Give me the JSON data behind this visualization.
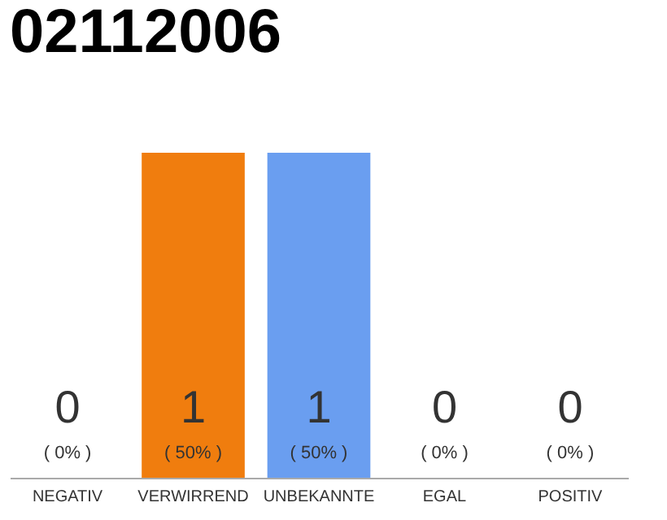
{
  "chart_data": {
    "type": "bar",
    "title": "02112006",
    "categories": [
      "NEGATIV",
      "VERWIRREND",
      "UNBEKANNTE",
      "EGAL",
      "POSITIV"
    ],
    "values": [
      0,
      1,
      1,
      0,
      0
    ],
    "colors": [
      "#efefef",
      "#f07d0e",
      "#6a9ef0",
      "#efefef",
      "#efefef"
    ],
    "ylim": [
      0,
      1
    ],
    "data_labels": true,
    "annotations": [
      {
        "text": "( 0% )",
        "x": "NEGATIV",
        "y": 0
      },
      {
        "text": "( 50% )",
        "x": "VERWIRREND",
        "y": 0
      },
      {
        "text": "( 50% )",
        "x": "UNBEKANNTE",
        "y": 0
      },
      {
        "text": "( 0% )",
        "x": "EGAL",
        "y": 0
      },
      {
        "text": "( 0% )",
        "x": "POSITIV",
        "y": 0
      }
    ]
  }
}
